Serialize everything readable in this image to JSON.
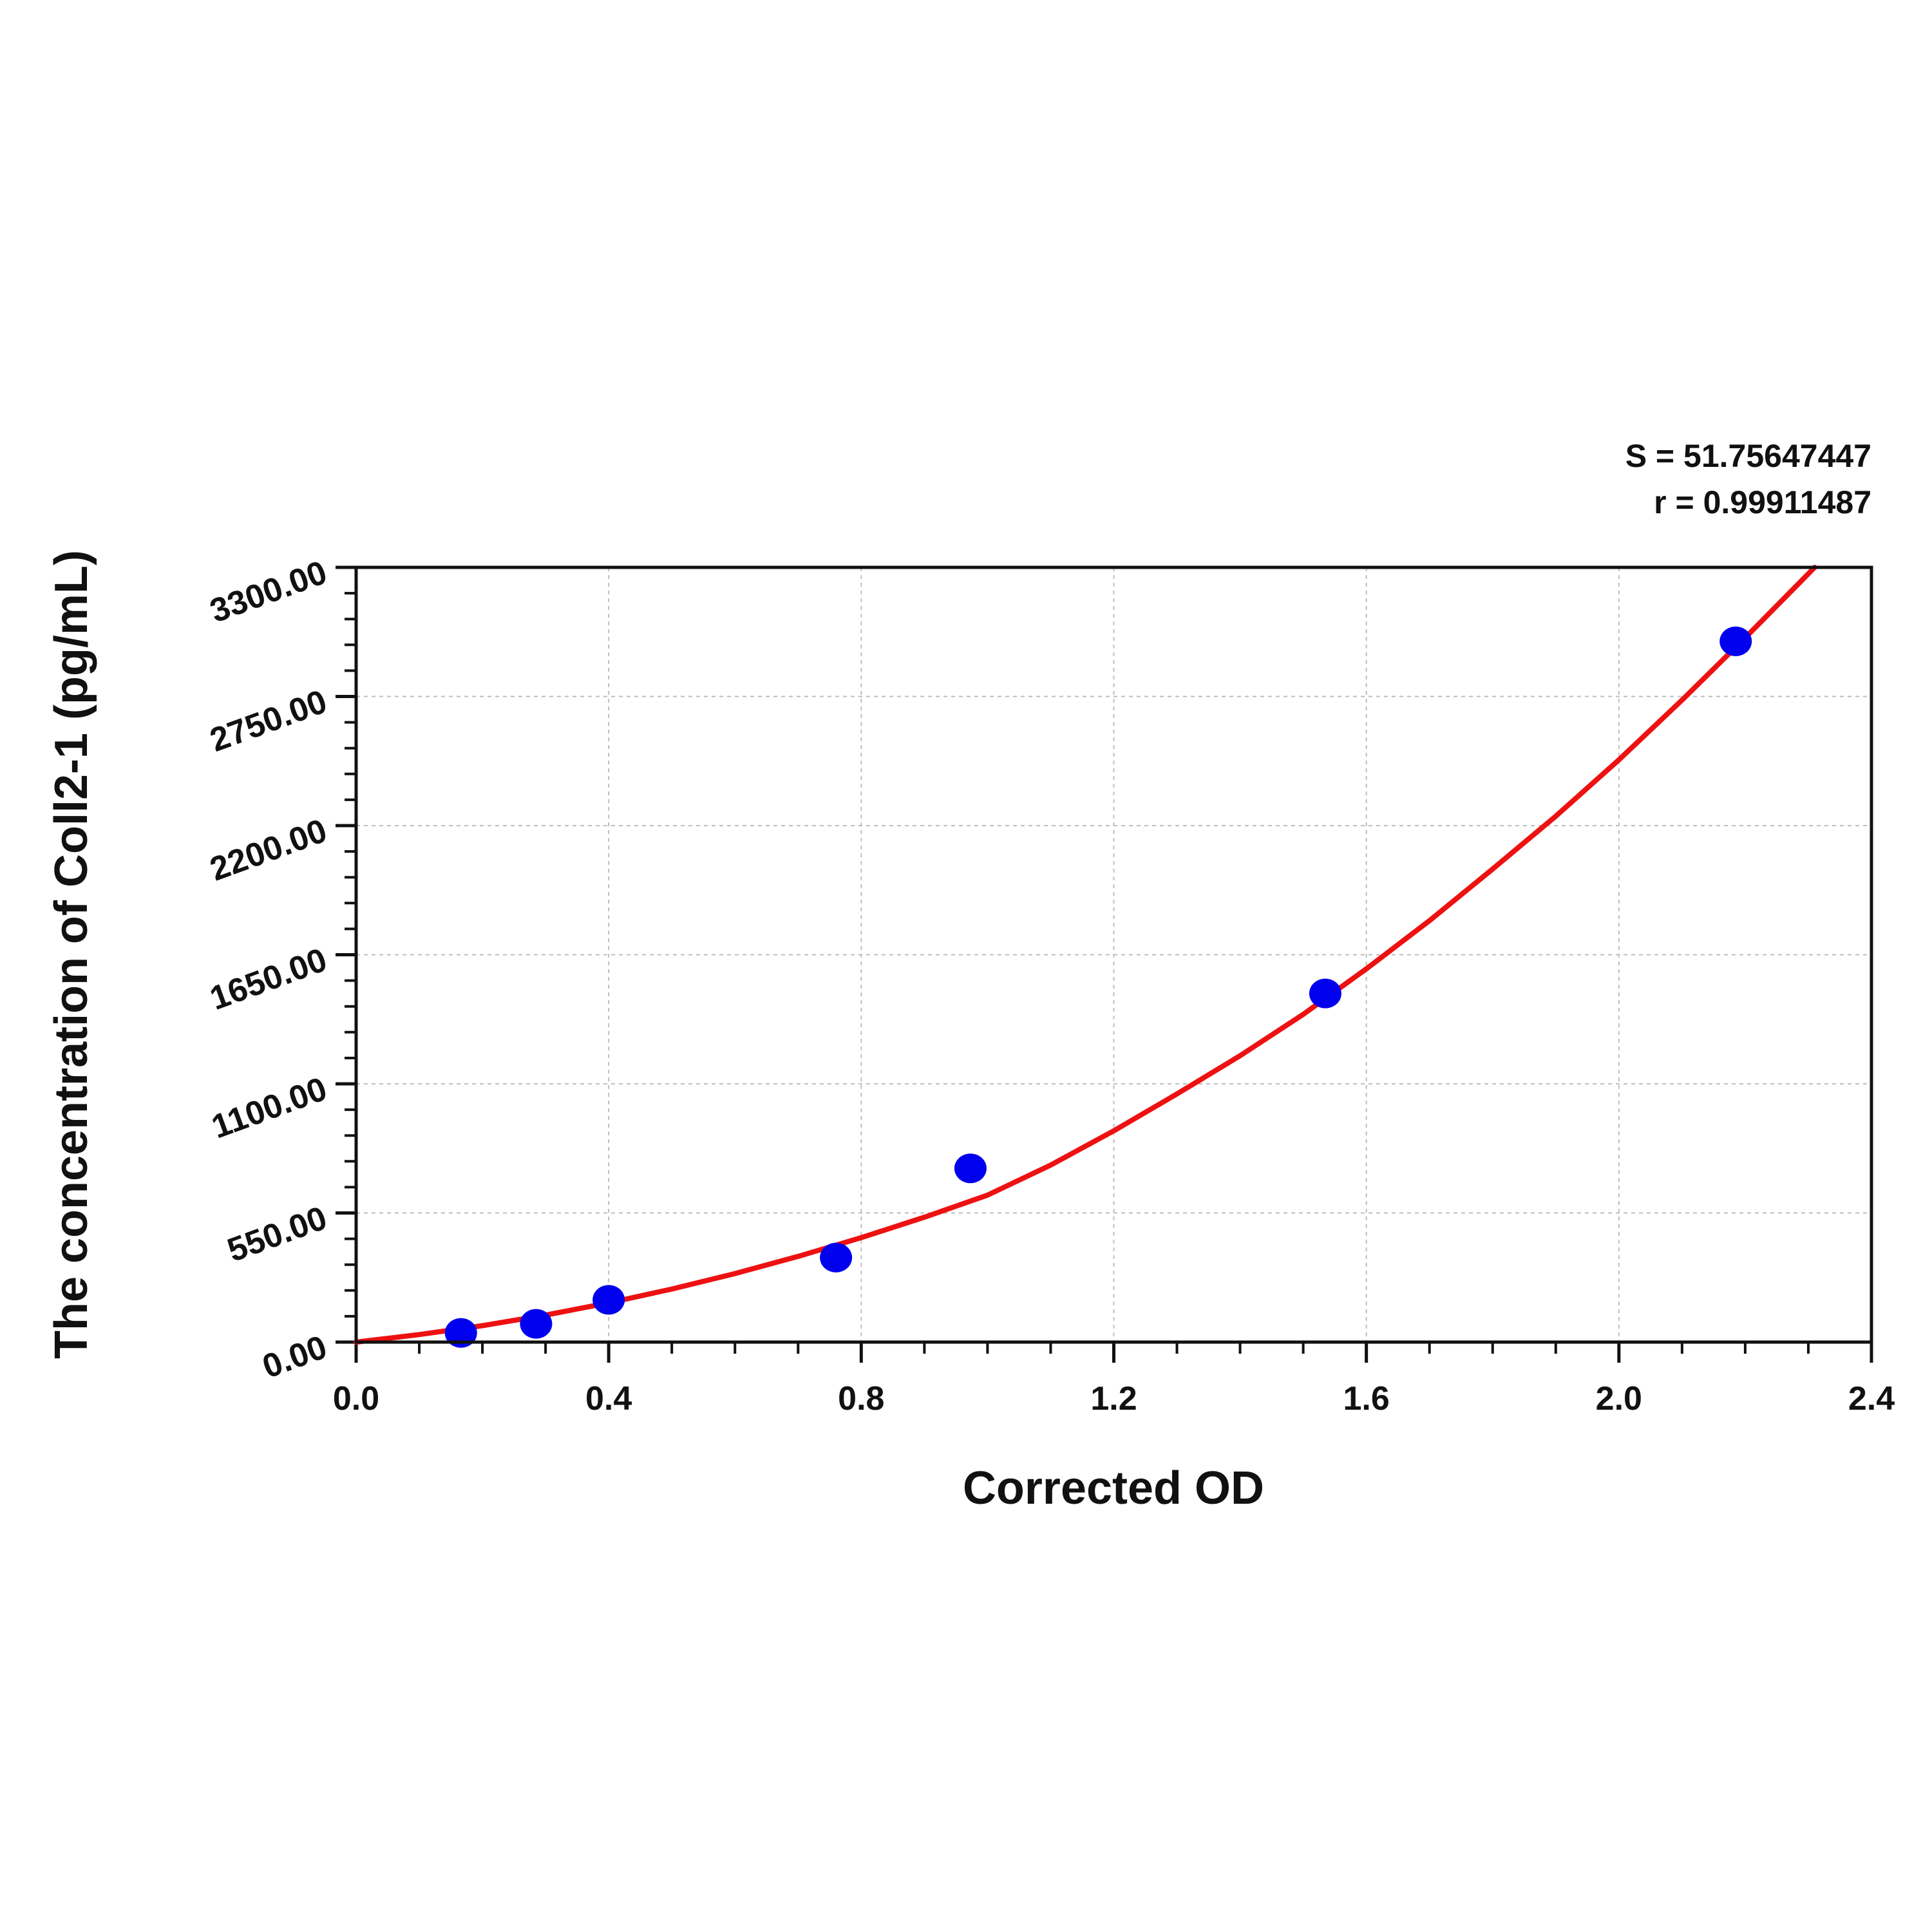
{
  "chart_data": {
    "type": "scatter",
    "title": "",
    "xlabel": "Corrected OD",
    "ylabel": "The concentration of Coll2-1 (pg/mL)",
    "xlim": [
      0,
      2.4
    ],
    "ylim": [
      0,
      3300
    ],
    "x_ticks": [
      "0.0",
      "0.4",
      "0.8",
      "1.2",
      "1.6",
      "2.0",
      "2.4"
    ],
    "x_tick_values": [
      0,
      0.4,
      0.8,
      1.2,
      1.6,
      2.0,
      2.4
    ],
    "y_ticks": [
      "0.00",
      "550.00",
      "1100.00",
      "1650.00",
      "2200.00",
      "2750.00",
      "3300.00"
    ],
    "y_tick_values": [
      0,
      550,
      1100,
      1650,
      2200,
      2750,
      3300
    ],
    "grid": true,
    "series": [
      {
        "kind": "points",
        "color": "#0000ee",
        "points": [
          {
            "x": 0.166,
            "y": 39
          },
          {
            "x": 0.285,
            "y": 78
          },
          {
            "x": 0.4,
            "y": 180
          },
          {
            "x": 0.76,
            "y": 360
          },
          {
            "x": 0.973,
            "y": 740
          },
          {
            "x": 1.535,
            "y": 1485
          },
          {
            "x": 2.185,
            "y": 2985
          }
        ]
      },
      {
        "kind": "fit",
        "color": "#ee1111",
        "curve": [
          {
            "x": 0.0,
            "y": 0
          },
          {
            "x": 0.1,
            "y": 32
          },
          {
            "x": 0.2,
            "y": 70
          },
          {
            "x": 0.3,
            "y": 115
          },
          {
            "x": 0.4,
            "y": 167
          },
          {
            "x": 0.5,
            "y": 226
          },
          {
            "x": 0.6,
            "y": 292
          },
          {
            "x": 0.7,
            "y": 365
          },
          {
            "x": 0.8,
            "y": 445
          },
          {
            "x": 0.9,
            "y": 532
          },
          {
            "x": 1.0,
            "y": 626
          },
          {
            "x": 1.1,
            "y": 754
          },
          {
            "x": 1.2,
            "y": 900
          },
          {
            "x": 1.3,
            "y": 1057
          },
          {
            "x": 1.4,
            "y": 1220
          },
          {
            "x": 1.5,
            "y": 1396
          },
          {
            "x": 1.6,
            "y": 1590
          },
          {
            "x": 1.7,
            "y": 1795
          },
          {
            "x": 1.8,
            "y": 2015
          },
          {
            "x": 1.9,
            "y": 2240
          },
          {
            "x": 2.0,
            "y": 2480
          },
          {
            "x": 2.1,
            "y": 2735
          },
          {
            "x": 2.2,
            "y": 3000
          },
          {
            "x": 2.31,
            "y": 3300
          }
        ]
      }
    ],
    "annotations": {
      "s_text": "S = 51.75647447",
      "r_text": "r = 0.99911487"
    }
  }
}
